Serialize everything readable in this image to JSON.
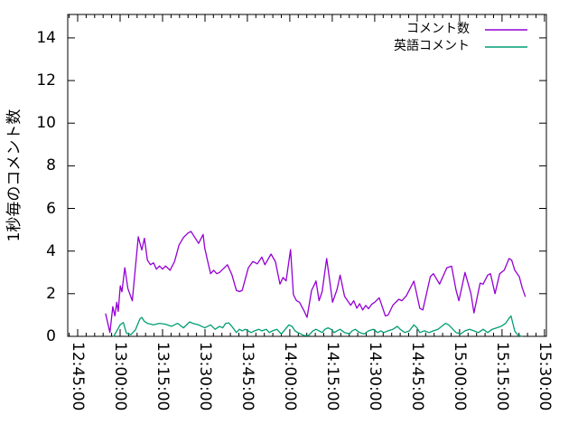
{
  "window": {
    "background": "#ffffff",
    "axis_color": "#000000"
  },
  "chart_data": {
    "type": "line",
    "title": "",
    "xlabel": "",
    "ylabel": "1秒毎のコメント数",
    "grid": false,
    "legend": {
      "position": "top-right-inside",
      "entries": [
        "コメント数",
        "英語コメント"
      ]
    },
    "x_domain": [
      "12:41:30",
      "15:30:40"
    ],
    "x_tick_labels": [
      "12:45:00",
      "13:00:00",
      "13:15:00",
      "13:30:00",
      "13:45:00",
      "14:00:00",
      "14:15:00",
      "14:30:00",
      "14:45:00",
      "15:00:00",
      "15:15:00",
      "15:30:00"
    ],
    "x_minor_interval_seconds": 180,
    "y_ticks": [
      0,
      2,
      4,
      6,
      8,
      10,
      12,
      14
    ],
    "ylim": [
      0,
      15.1
    ],
    "series": [
      {
        "name": "コメント数",
        "color": "#9400d3",
        "points": [
          [
            "12:54:55",
            1.05
          ],
          [
            "12:56:25",
            0.18
          ],
          [
            "12:57:25",
            1.39
          ],
          [
            "12:58:10",
            0.96
          ],
          [
            "12:58:50",
            1.6
          ],
          [
            "12:59:20",
            1.17
          ],
          [
            "13:00:05",
            2.37
          ],
          [
            "13:00:40",
            2.09
          ],
          [
            "13:01:40",
            3.22
          ],
          [
            "13:02:45",
            2.24
          ],
          [
            "13:04:20",
            1.67
          ],
          [
            "13:06:25",
            4.67
          ],
          [
            "13:07:40",
            4.05
          ],
          [
            "13:08:35",
            4.6
          ],
          [
            "13:09:40",
            3.58
          ],
          [
            "13:10:45",
            3.36
          ],
          [
            "13:11:50",
            3.45
          ],
          [
            "13:12:50",
            3.15
          ],
          [
            "13:13:55",
            3.3
          ],
          [
            "13:15:00",
            3.15
          ],
          [
            "13:16:05",
            3.3
          ],
          [
            "13:17:40",
            3.1
          ],
          [
            "13:19:15",
            3.51
          ],
          [
            "13:20:50",
            4.28
          ],
          [
            "13:22:25",
            4.64
          ],
          [
            "13:24:00",
            4.85
          ],
          [
            "13:25:05",
            4.92
          ],
          [
            "13:26:45",
            4.57
          ],
          [
            "13:27:45",
            4.36
          ],
          [
            "13:29:20",
            4.78
          ],
          [
            "13:29:55",
            4.14
          ],
          [
            "13:31:00",
            3.5
          ],
          [
            "13:32:00",
            2.94
          ],
          [
            "13:33:05",
            3.1
          ],
          [
            "13:34:10",
            2.94
          ],
          [
            "13:35:10",
            3.0
          ],
          [
            "13:37:55",
            3.36
          ],
          [
            "13:39:30",
            2.9
          ],
          [
            "13:41:05",
            2.16
          ],
          [
            "13:42:10",
            2.1
          ],
          [
            "13:43:10",
            2.16
          ],
          [
            "13:45:20",
            3.22
          ],
          [
            "13:46:55",
            3.51
          ],
          [
            "13:48:30",
            3.4
          ],
          [
            "13:50:05",
            3.72
          ],
          [
            "13:51:10",
            3.36
          ],
          [
            "13:53:20",
            3.86
          ],
          [
            "13:54:55",
            3.5
          ],
          [
            "13:56:30",
            2.45
          ],
          [
            "13:57:35",
            2.76
          ],
          [
            "13:58:40",
            2.6
          ],
          [
            "14:00:15",
            4.07
          ],
          [
            "14:01:15",
            1.95
          ],
          [
            "14:02:20",
            1.67
          ],
          [
            "14:03:25",
            1.6
          ],
          [
            "14:05:00",
            1.2
          ],
          [
            "14:06:05",
            0.89
          ],
          [
            "14:07:40",
            2.16
          ],
          [
            "14:08:45",
            2.45
          ],
          [
            "14:09:15",
            2.6
          ],
          [
            "14:10:20",
            1.67
          ],
          [
            "14:11:25",
            2.1
          ],
          [
            "14:13:00",
            3.65
          ],
          [
            "14:14:05",
            2.6
          ],
          [
            "14:15:05",
            1.6
          ],
          [
            "14:16:40",
            2.2
          ],
          [
            "14:17:45",
            2.87
          ],
          [
            "14:19:20",
            1.88
          ],
          [
            "14:20:25",
            1.67
          ],
          [
            "14:21:30",
            1.46
          ],
          [
            "14:22:35",
            1.67
          ],
          [
            "14:23:40",
            1.32
          ],
          [
            "14:24:40",
            1.53
          ],
          [
            "14:25:45",
            1.24
          ],
          [
            "14:26:50",
            1.45
          ],
          [
            "14:27:50",
            1.3
          ],
          [
            "14:28:55",
            1.5
          ],
          [
            "14:30:00",
            1.6
          ],
          [
            "14:31:35",
            1.81
          ],
          [
            "14:33:45",
            0.96
          ],
          [
            "14:34:45",
            1.0
          ],
          [
            "14:36:25",
            1.46
          ],
          [
            "14:38:30",
            1.74
          ],
          [
            "14:39:35",
            1.67
          ],
          [
            "14:41:10",
            1.9
          ],
          [
            "14:43:50",
            2.59
          ],
          [
            "14:45:55",
            1.32
          ],
          [
            "14:47:00",
            1.24
          ],
          [
            "14:49:40",
            2.8
          ],
          [
            "14:50:45",
            2.94
          ],
          [
            "14:52:55",
            2.45
          ],
          [
            "14:55:30",
            3.22
          ],
          [
            "14:57:10",
            3.29
          ],
          [
            "14:58:45",
            2.16
          ],
          [
            "14:59:45",
            1.67
          ],
          [
            "15:01:55",
            3.0
          ],
          [
            "15:04:00",
            2.0
          ],
          [
            "15:05:05",
            1.1
          ],
          [
            "15:07:15",
            2.5
          ],
          [
            "15:08:20",
            2.45
          ],
          [
            "15:09:55",
            2.87
          ],
          [
            "15:10:55",
            2.94
          ],
          [
            "15:12:30",
            2.0
          ],
          [
            "15:14:10",
            2.94
          ],
          [
            "15:15:45",
            3.1
          ],
          [
            "15:17:30",
            3.65
          ],
          [
            "15:18:25",
            3.57
          ],
          [
            "15:19:30",
            3.1
          ],
          [
            "15:21:05",
            2.8
          ],
          [
            "15:22:05",
            2.3
          ],
          [
            "15:23:10",
            1.88
          ]
        ]
      },
      {
        "name": "英語コメント",
        "color": "#009e73",
        "points": [
          [
            "12:57:45",
            0.0
          ],
          [
            "13:00:05",
            0.55
          ],
          [
            "13:01:10",
            0.65
          ],
          [
            "13:02:15",
            0.15
          ],
          [
            "13:03:50",
            0.08
          ],
          [
            "13:05:25",
            0.3
          ],
          [
            "13:07:00",
            0.82
          ],
          [
            "13:07:40",
            0.89
          ],
          [
            "13:08:35",
            0.7
          ],
          [
            "13:09:40",
            0.61
          ],
          [
            "13:11:50",
            0.54
          ],
          [
            "13:13:55",
            0.61
          ],
          [
            "13:16:05",
            0.57
          ],
          [
            "13:18:10",
            0.47
          ],
          [
            "13:20:20",
            0.61
          ],
          [
            "13:22:25",
            0.4
          ],
          [
            "13:24:35",
            0.68
          ],
          [
            "13:25:40",
            0.61
          ],
          [
            "13:27:45",
            0.54
          ],
          [
            "13:29:55",
            0.4
          ],
          [
            "13:32:00",
            0.54
          ],
          [
            "13:33:35",
            0.33
          ],
          [
            "13:35:10",
            0.47
          ],
          [
            "13:36:15",
            0.4
          ],
          [
            "13:37:20",
            0.61
          ],
          [
            "13:38:25",
            0.63
          ],
          [
            "13:39:30",
            0.47
          ],
          [
            "13:41:05",
            0.18
          ],
          [
            "13:42:10",
            0.33
          ],
          [
            "13:43:10",
            0.26
          ],
          [
            "13:44:15",
            0.33
          ],
          [
            "13:46:20",
            0.18
          ],
          [
            "13:47:30",
            0.26
          ],
          [
            "13:49:05",
            0.33
          ],
          [
            "13:50:05",
            0.26
          ],
          [
            "13:51:40",
            0.33
          ],
          [
            "13:52:45",
            0.18
          ],
          [
            "13:53:50",
            0.26
          ],
          [
            "13:55:25",
            0.33
          ],
          [
            "13:57:00",
            0.11
          ],
          [
            "13:59:40",
            0.54
          ],
          [
            "14:00:45",
            0.47
          ],
          [
            "14:01:50",
            0.26
          ],
          [
            "14:02:50",
            0.18
          ],
          [
            "14:03:55",
            0.11
          ],
          [
            "14:05:00",
            0.04
          ],
          [
            "14:06:35",
            0.04
          ],
          [
            "14:08:10",
            0.26
          ],
          [
            "14:09:15",
            0.33
          ],
          [
            "14:10:20",
            0.26
          ],
          [
            "14:11:25",
            0.18
          ],
          [
            "14:12:25",
            0.33
          ],
          [
            "14:13:30",
            0.4
          ],
          [
            "14:14:35",
            0.33
          ],
          [
            "14:15:40",
            0.18
          ],
          [
            "14:16:40",
            0.26
          ],
          [
            "14:17:45",
            0.33
          ],
          [
            "14:19:20",
            0.18
          ],
          [
            "14:21:00",
            0.11
          ],
          [
            "14:22:00",
            0.26
          ],
          [
            "14:23:05",
            0.33
          ],
          [
            "14:24:40",
            0.18
          ],
          [
            "14:26:15",
            0.11
          ],
          [
            "14:27:50",
            0.26
          ],
          [
            "14:29:30",
            0.33
          ],
          [
            "14:31:05",
            0.18
          ],
          [
            "14:32:10",
            0.26
          ],
          [
            "14:33:10",
            0.18
          ],
          [
            "14:34:45",
            0.26
          ],
          [
            "14:36:25",
            0.33
          ],
          [
            "14:38:00",
            0.47
          ],
          [
            "14:39:00",
            0.33
          ],
          [
            "14:40:40",
            0.18
          ],
          [
            "14:42:15",
            0.26
          ],
          [
            "14:43:50",
            0.54
          ],
          [
            "14:44:55",
            0.4
          ],
          [
            "14:45:55",
            0.18
          ],
          [
            "14:47:35",
            0.26
          ],
          [
            "14:49:10",
            0.18
          ],
          [
            "14:50:45",
            0.26
          ],
          [
            "14:52:20",
            0.33
          ],
          [
            "14:55:00",
            0.61
          ],
          [
            "14:56:05",
            0.54
          ],
          [
            "14:57:10",
            0.4
          ],
          [
            "14:58:45",
            0.18
          ],
          [
            "15:00:20",
            0.11
          ],
          [
            "15:01:55",
            0.26
          ],
          [
            "15:03:30",
            0.33
          ],
          [
            "15:05:05",
            0.26
          ],
          [
            "15:06:40",
            0.18
          ],
          [
            "15:08:20",
            0.33
          ],
          [
            "15:09:55",
            0.18
          ],
          [
            "15:11:30",
            0.33
          ],
          [
            "15:13:05",
            0.4
          ],
          [
            "15:14:40",
            0.47
          ],
          [
            "15:16:15",
            0.61
          ],
          [
            "15:17:20",
            0.82
          ],
          [
            "15:18:10",
            0.96
          ],
          [
            "15:19:30",
            0.25
          ],
          [
            "15:20:30",
            0.07
          ],
          [
            "15:22:00",
            0.0
          ]
        ]
      }
    ]
  }
}
